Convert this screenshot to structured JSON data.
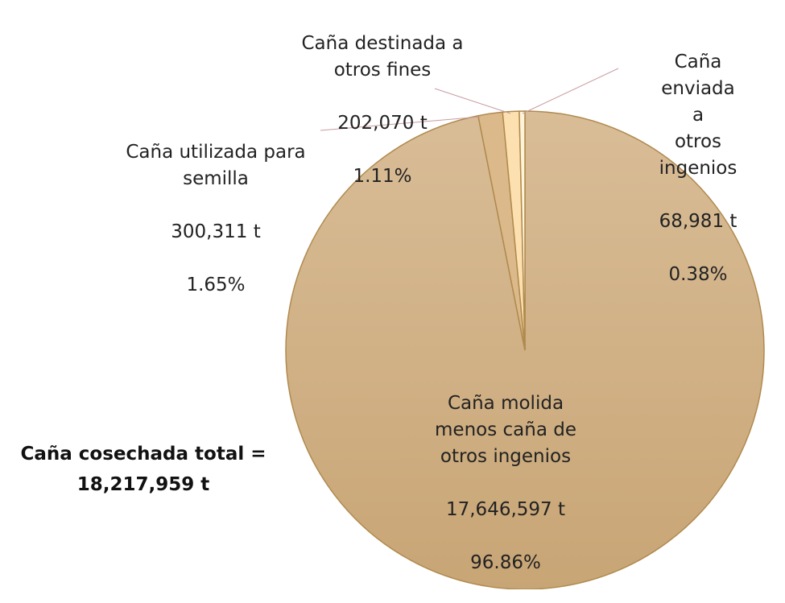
{
  "chart_data": {
    "type": "pie",
    "categories": [
      "Caña molida\nmenos caña de\notros ingenios",
      "Caña utilizada para\nsemilla",
      "Caña destinada a\notros fines",
      "Caña enviada a\notros ingenios"
    ],
    "values": [
      17646597,
      300311,
      202070,
      68981
    ],
    "value_labels": [
      "17,646,597 t",
      "300,311 t",
      "202,070 t",
      "68,981 t"
    ],
    "percent_labels": [
      "96.86%",
      "1.65%",
      "1.11%",
      "0.38%"
    ],
    "colors": [
      "#cfae84",
      "#dcb98a",
      "#fde0b0",
      "#fff3da"
    ],
    "annotation": "Caña cosechada total =\n18,217,959 t"
  }
}
